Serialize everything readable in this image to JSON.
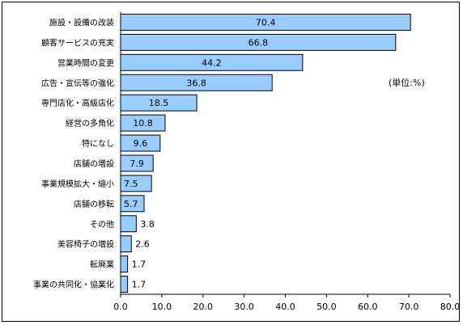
{
  "chart_data": {
    "type": "bar",
    "orientation": "horizontal",
    "categories": [
      "施設・設備の改装",
      "顧客サービスの充実",
      "営業時間の変更",
      "広告・宣伝等の強化",
      "専門店化・高級店化",
      "経営の多角化",
      "特になし",
      "店舗の増設",
      "事業規模拡大・縮小",
      "店舗の移転",
      "その他",
      "美容椅子の増設",
      "転廃業",
      "事業の共同化・協業化"
    ],
    "values": [
      70.4,
      66.8,
      44.2,
      36.8,
      18.5,
      10.8,
      9.6,
      7.9,
      7.5,
      5.7,
      3.8,
      2.6,
      1.7,
      1.7
    ],
    "value_labels": [
      "70.4",
      "66.8",
      "44.2",
      "36.8",
      "18.5",
      "10.8",
      "9.6",
      "7.9",
      "7.5",
      "5.7",
      "3.8",
      "2.6",
      "1.7",
      "1.7"
    ],
    "xlim": [
      0,
      80
    ],
    "xticks": [
      "0.0",
      "10.0",
      "20.0",
      "30.0",
      "40.0",
      "50.0",
      "60.0",
      "70.0",
      "80.0"
    ],
    "unit_note": "(単位:%)",
    "grid": false,
    "bar_color": "#99CCFF",
    "bar_border": "#000000"
  }
}
